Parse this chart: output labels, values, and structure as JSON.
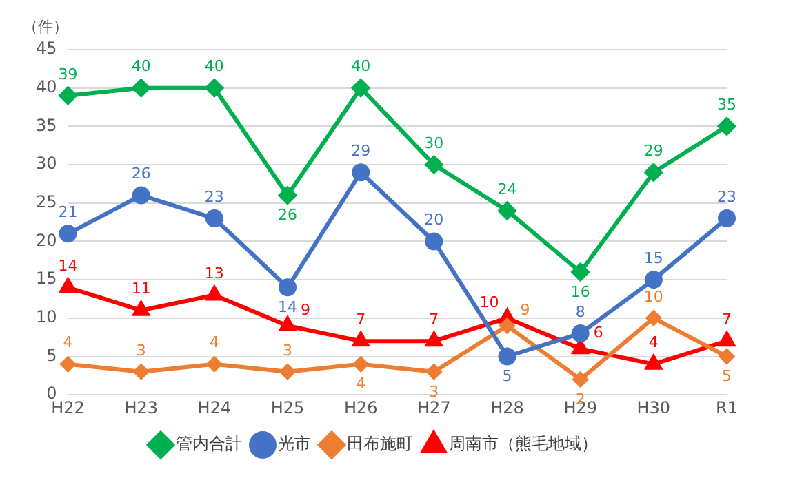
{
  "chart_data": {
    "type": "line",
    "ylabel": "（件）",
    "categories": [
      "H22",
      "H23",
      "H24",
      "H25",
      "H26",
      "H27",
      "H28",
      "H29",
      "H30",
      "R1"
    ],
    "series": [
      {
        "name": "管内合計",
        "color": "#00b050",
        "marker": "diamond",
        "values": [
          39,
          40,
          40,
          26,
          40,
          30,
          24,
          16,
          29,
          35
        ]
      },
      {
        "name": "光市",
        "color": "#4472c4",
        "marker": "circle",
        "values": [
          21,
          26,
          23,
          14,
          29,
          20,
          5,
          8,
          15,
          23
        ]
      },
      {
        "name": "田布施町",
        "color": "#ed7d31",
        "marker": "diamond",
        "values": [
          4,
          3,
          4,
          3,
          4,
          3,
          9,
          2,
          10,
          5
        ]
      },
      {
        "name": "周南市（熊毛地域）",
        "color": "#ff0000",
        "marker": "triangle",
        "values": [
          14,
          11,
          13,
          9,
          7,
          7,
          10,
          6,
          4,
          7
        ]
      }
    ],
    "ylim": [
      0,
      45
    ],
    "yticks": [
      0,
      5,
      10,
      15,
      20,
      25,
      30,
      35,
      40,
      45
    ],
    "grid": "y",
    "legend": "bottom",
    "data_labels": true,
    "line_style": "solid"
  }
}
